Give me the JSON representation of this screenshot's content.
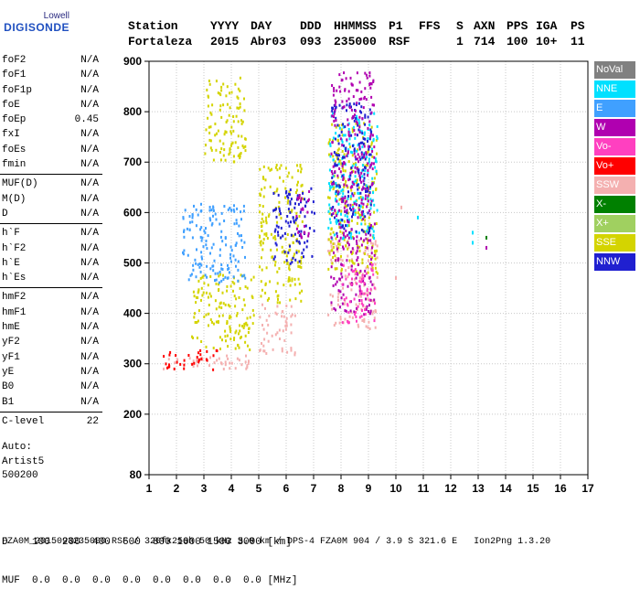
{
  "logo": {
    "line1": "Lowell",
    "line2": "DIGISONDE"
  },
  "header": {
    "labels": [
      "Station",
      "YYYY",
      "DAY",
      "DDD",
      "HHMMSS",
      "P1",
      "FFS",
      "S",
      "AXN",
      "PPS",
      "IGA",
      "PS"
    ],
    "values": [
      "Fortaleza",
      "2015",
      "Abr03",
      "093",
      "235000",
      "RSF",
      "",
      "1",
      "714",
      "100",
      "10+",
      "11"
    ]
  },
  "params": [
    {
      "label": "foF2",
      "value": "N/A"
    },
    {
      "label": "foF1",
      "value": "N/A"
    },
    {
      "label": "foF1p",
      "value": "N/A"
    },
    {
      "label": "foE",
      "value": "N/A"
    },
    {
      "label": "foEp",
      "value": "0.45"
    },
    {
      "label": "fxI",
      "value": "N/A"
    },
    {
      "label": "foEs",
      "value": "N/A"
    },
    {
      "label": "fmin",
      "value": "N/A"
    },
    {
      "sep": true
    },
    {
      "label": "MUF(D)",
      "value": "N/A"
    },
    {
      "label": "M(D)",
      "value": "N/A"
    },
    {
      "label": "D",
      "value": "N/A"
    },
    {
      "sep": true
    },
    {
      "label": "h`F",
      "value": "N/A"
    },
    {
      "label": "h`F2",
      "value": "N/A"
    },
    {
      "label": "h`E",
      "value": "N/A"
    },
    {
      "label": "h`Es",
      "value": "N/A"
    },
    {
      "sep": true
    },
    {
      "label": "hmF2",
      "value": "N/A"
    },
    {
      "label": "hmF1",
      "value": "N/A"
    },
    {
      "label": "hmE",
      "value": "N/A"
    },
    {
      "label": "yF2",
      "value": "N/A"
    },
    {
      "label": "yF1",
      "value": "N/A"
    },
    {
      "label": "yE",
      "value": "N/A"
    },
    {
      "label": "B0",
      "value": "N/A"
    },
    {
      "label": "B1",
      "value": "N/A"
    },
    {
      "sep": true
    },
    {
      "label": "C-level",
      "value": "22"
    }
  ],
  "auto": {
    "line1": "Auto:",
    "line2": "Artist5",
    "line3": "500200"
  },
  "legend": [
    {
      "label": "NoVal",
      "color": "#808080"
    },
    {
      "label": "NNE",
      "color": "#00e0ff"
    },
    {
      "label": "E",
      "color": "#40a0ff"
    },
    {
      "label": "W",
      "color": "#b000b0"
    },
    {
      "label": "Vo-",
      "color": "#ff40c0"
    },
    {
      "label": "Vo+",
      "color": "#ff0000"
    },
    {
      "label": "SSW",
      "color": "#f4b0b0"
    },
    {
      "label": "X-",
      "color": "#008000"
    },
    {
      "label": "X+",
      "color": "#a0d060"
    },
    {
      "label": "SSE",
      "color": "#d4d400"
    },
    {
      "label": "NNW",
      "color": "#2020d0"
    }
  ],
  "bottom": {
    "d_row": "D    100  200  400  600  800 1000 1500 3000 [km]",
    "muf_row": "MUF  0.0  0.0  0.0  0.0  0.0  0.0  0.0  0.0 [MHz]"
  },
  "footer": "FZA0M_2015093235000.RSF / 320fx256h 50 kHz 5.0 km / DPS-4 FZA0M 904 / 3.9 S 321.6 E   Ion2Png 1.3.20",
  "chart_data": {
    "type": "scatter",
    "xlim": [
      1,
      17
    ],
    "ylim": [
      80,
      900
    ],
    "x_ticks": [
      1,
      2,
      3,
      4,
      5,
      6,
      7,
      8,
      9,
      10,
      11,
      12,
      13,
      14,
      15,
      16,
      17
    ],
    "y_ticks": [
      80,
      200,
      300,
      400,
      500,
      600,
      700,
      800,
      900
    ],
    "grid": true,
    "clusters": [
      {
        "name": "SSW",
        "x": [
          1.5,
          4.8
        ],
        "y": [
          290,
          320
        ]
      },
      {
        "name": "SSW",
        "x": [
          5.0,
          6.3
        ],
        "y": [
          320,
          420
        ]
      },
      {
        "name": "SSW",
        "x": [
          7.5,
          9.3
        ],
        "y": [
          370,
          550
        ]
      },
      {
        "name": "SSE",
        "x": [
          2.5,
          4.8
        ],
        "y": [
          330,
          480
        ]
      },
      {
        "name": "SSE",
        "x": [
          5.0,
          6.6
        ],
        "y": [
          420,
          700
        ]
      },
      {
        "name": "SSE",
        "x": [
          7.5,
          9.3
        ],
        "y": [
          480,
          780
        ]
      },
      {
        "name": "SSE",
        "x": [
          3.0,
          4.5
        ],
        "y": [
          700,
          870
        ]
      },
      {
        "name": "E",
        "x": [
          2.2,
          4.5
        ],
        "y": [
          460,
          620
        ]
      },
      {
        "name": "NNE",
        "x": [
          7.5,
          9.3
        ],
        "y": [
          550,
          800
        ]
      },
      {
        "name": "NNW",
        "x": [
          5.5,
          7.0
        ],
        "y": [
          500,
          650
        ]
      },
      {
        "name": "NNW",
        "x": [
          7.6,
          9.1
        ],
        "y": [
          560,
          820
        ]
      },
      {
        "name": "W",
        "x": [
          7.6,
          9.2
        ],
        "y": [
          400,
          880
        ]
      },
      {
        "name": "W",
        "x": [
          6.3,
          6.9
        ],
        "y": [
          550,
          650
        ]
      },
      {
        "name": "Vo+",
        "x": [
          1.5,
          3.5
        ],
        "y": [
          290,
          330
        ]
      },
      {
        "name": "Vo-",
        "x": [
          8.0,
          9.2
        ],
        "y": [
          380,
          500
        ]
      }
    ],
    "isolated_points": [
      {
        "name": "NNE",
        "x": 12.8,
        "y": 560
      },
      {
        "name": "NNE",
        "x": 12.8,
        "y": 540
      },
      {
        "name": "X-",
        "x": 13.3,
        "y": 550
      },
      {
        "name": "W",
        "x": 13.3,
        "y": 530
      },
      {
        "name": "NNE",
        "x": 10.8,
        "y": 590
      },
      {
        "name": "SSW",
        "x": 10.2,
        "y": 610
      },
      {
        "name": "SSW",
        "x": 10.0,
        "y": 470
      }
    ]
  }
}
